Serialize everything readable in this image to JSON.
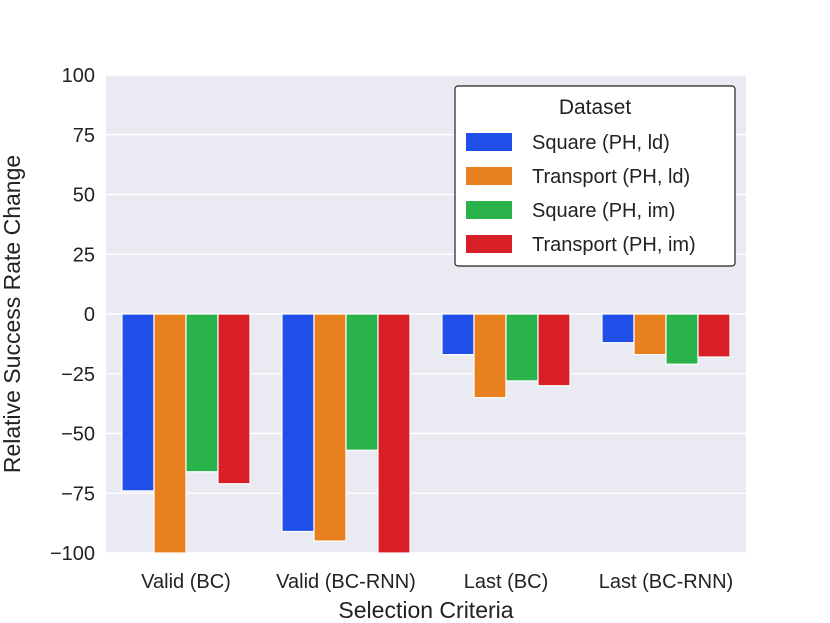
{
  "chart_data": {
    "type": "bar",
    "title": "",
    "xlabel": "Selection Criteria",
    "ylabel": "Relative Success Rate Change",
    "ylim": [
      -100,
      100
    ],
    "yticks": [
      100,
      75,
      50,
      25,
      0,
      -25,
      -50,
      -75,
      -100
    ],
    "ytick_labels": [
      "100",
      "75",
      "50",
      "25",
      "0",
      "−25",
      "−50",
      "−75",
      "−100"
    ],
    "categories": [
      "Valid (BC)",
      "Valid (BC-RNN)",
      "Last (BC)",
      "Last (BC-RNN)"
    ],
    "legend_title": "Dataset",
    "legend_position": "top-right",
    "grid": true,
    "series": [
      {
        "name": "Square (PH, ld)",
        "color": "#1f4ee8",
        "values": [
          -74,
          -91,
          -17,
          -12
        ]
      },
      {
        "name": "Transport (PH, ld)",
        "color": "#e8801f",
        "values": [
          -100,
          -95,
          -35,
          -17
        ]
      },
      {
        "name": "Square (PH, im)",
        "color": "#2ab34a",
        "values": [
          -66,
          -57,
          -28,
          -21
        ]
      },
      {
        "name": "Transport (PH, im)",
        "color": "#d81f26",
        "values": [
          -71,
          -100,
          -30,
          -18
        ]
      }
    ]
  }
}
